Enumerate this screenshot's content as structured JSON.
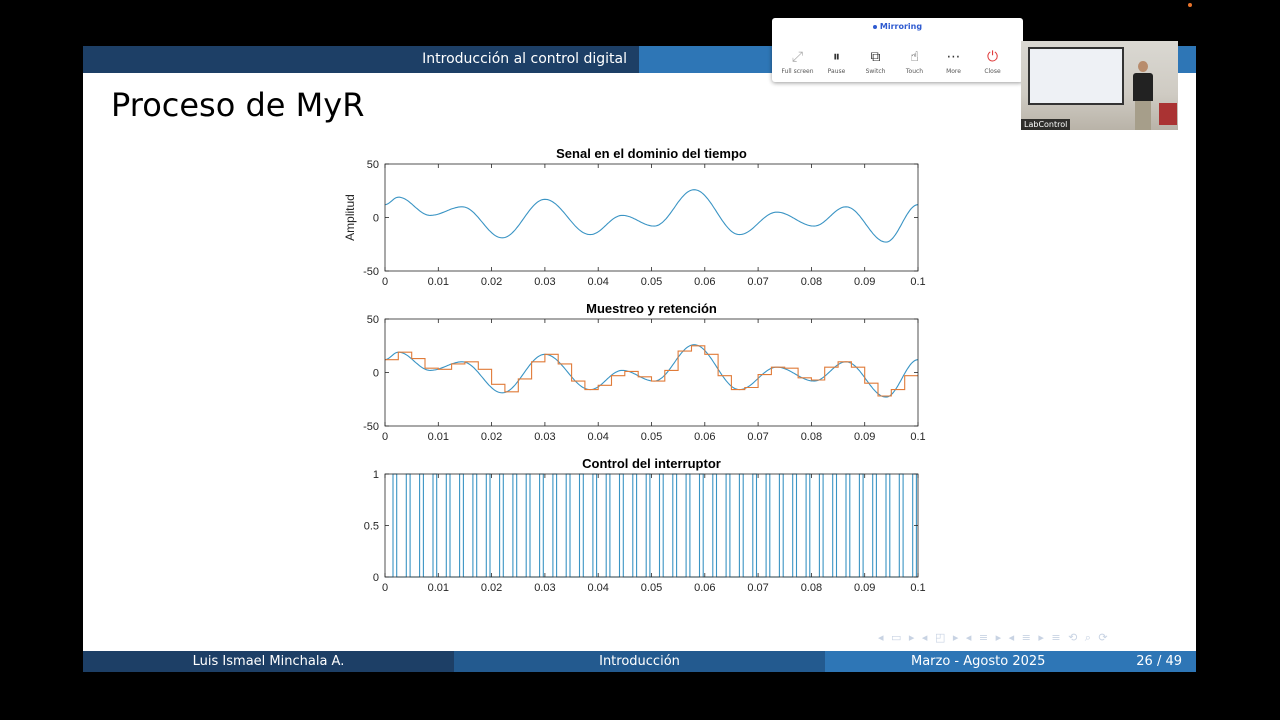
{
  "slide": {
    "header_title": "Introducción al control digital",
    "frame_title": "Proceso de MyR",
    "footer": {
      "author": "Luis Ismael Minchala A.",
      "section": "Introducción",
      "date": "Marzo - Agosto 2025",
      "page": "26 / 49"
    },
    "nav_symbols": "◂ ▭ ▸ ◂ ◰ ▸ ◂ ≡ ▸ ◂ ≡ ▸ ≡ ⟲ ⌕ ⟳"
  },
  "colors": {
    "beamer_dark": "#1d3f66",
    "beamer_mid": "#235a8f",
    "beamer_light": "#2e76b6",
    "signal_blue": "#3a94c4",
    "hold_orange": "#e07b39"
  },
  "chart_data": [
    {
      "type": "line",
      "title": "Senal en el dominio del tiempo",
      "xlabel": "",
      "ylabel": "Amplitud",
      "xlim": [
        0,
        0.1
      ],
      "ylim": [
        -50,
        50
      ],
      "xticks": [
        "0",
        "0.01",
        "0.02",
        "0.03",
        "0.04",
        "0.05",
        "0.06",
        "0.07",
        "0.08",
        "0.09",
        "0.1"
      ],
      "yticks": [
        "-50",
        "0",
        "50"
      ],
      "grid": false,
      "series": [
        {
          "color": "#3a94c4",
          "x": [
            0,
            0.0025,
            0.0085,
            0.0145,
            0.022,
            0.03,
            0.0385,
            0.0445,
            0.0505,
            0.058,
            0.0665,
            0.0735,
            0.0805,
            0.0865,
            0.094,
            0.1
          ],
          "y": [
            12,
            19,
            2,
            10,
            -19,
            17,
            -16,
            2,
            -8,
            26,
            -16,
            5,
            -8,
            10,
            -23,
            12
          ]
        }
      ]
    },
    {
      "type": "line",
      "title": "Muestreo y retención",
      "xlabel": "",
      "ylabel": "",
      "xlim": [
        0,
        0.1
      ],
      "ylim": [
        -50,
        50
      ],
      "xticks": [
        "0",
        "0.01",
        "0.02",
        "0.03",
        "0.04",
        "0.05",
        "0.06",
        "0.07",
        "0.08",
        "0.09",
        "0.1"
      ],
      "yticks": [
        "-50",
        "0",
        "50"
      ],
      "grid": false,
      "series": [
        {
          "color": "#3a94c4",
          "x": [
            0,
            0.0025,
            0.0085,
            0.0145,
            0.022,
            0.03,
            0.0385,
            0.0445,
            0.0505,
            0.058,
            0.0665,
            0.0735,
            0.0805,
            0.0865,
            0.094,
            0.1
          ],
          "y": [
            12,
            19,
            2,
            10,
            -19,
            17,
            -16,
            2,
            -8,
            26,
            -16,
            5,
            -8,
            10,
            -23,
            12
          ]
        },
        {
          "color": "#e07b39",
          "step": true,
          "x": [
            0,
            0.0025,
            0.005,
            0.0075,
            0.01,
            0.0125,
            0.015,
            0.0175,
            0.02,
            0.0225,
            0.025,
            0.0275,
            0.03,
            0.0325,
            0.035,
            0.0375,
            0.04,
            0.0425,
            0.045,
            0.0475,
            0.05,
            0.0525,
            0.055,
            0.0575,
            0.06,
            0.0625,
            0.065,
            0.0675,
            0.07,
            0.0725,
            0.075,
            0.0775,
            0.08,
            0.0825,
            0.085,
            0.0875,
            0.09,
            0.0925,
            0.095,
            0.0975
          ],
          "y": [
            12,
            19,
            13,
            4,
            3,
            8,
            10,
            3,
            -11,
            -18,
            -6,
            10,
            17,
            8,
            -8,
            -16,
            -12,
            -3,
            1,
            -4,
            -8,
            2,
            20,
            25,
            17,
            -3,
            -16,
            -14,
            -2,
            5,
            4,
            -5,
            -7,
            5,
            10,
            5,
            -10,
            -22,
            -16,
            -3
          ]
        }
      ]
    },
    {
      "type": "line",
      "title": "Control del interruptor",
      "xlabel": "",
      "ylabel": "",
      "xlim": [
        0,
        0.1
      ],
      "ylim": [
        0,
        1
      ],
      "xticks": [
        "0",
        "0.01",
        "0.02",
        "0.03",
        "0.04",
        "0.05",
        "0.06",
        "0.07",
        "0.08",
        "0.09",
        "0.1"
      ],
      "yticks": [
        "0",
        "0.5",
        "1"
      ],
      "grid": false,
      "pulse_period": 0.0025,
      "pulse_width": 0.0007,
      "series": [
        {
          "color": "#3a94c4",
          "values": [
            0,
            1
          ]
        }
      ]
    }
  ],
  "mirroring": {
    "status": "Mirroring",
    "buttons": [
      {
        "label": "Full screen",
        "icon": "fullscreen-icon"
      },
      {
        "label": "Pause",
        "icon": "pause-icon"
      },
      {
        "label": "Switch",
        "icon": "switch-icon"
      },
      {
        "label": "Touch",
        "icon": "touch-icon"
      },
      {
        "label": "More",
        "icon": "more-icon"
      },
      {
        "label": "Close",
        "icon": "power-icon"
      }
    ]
  },
  "webcam": {
    "caption": "LabControl"
  }
}
